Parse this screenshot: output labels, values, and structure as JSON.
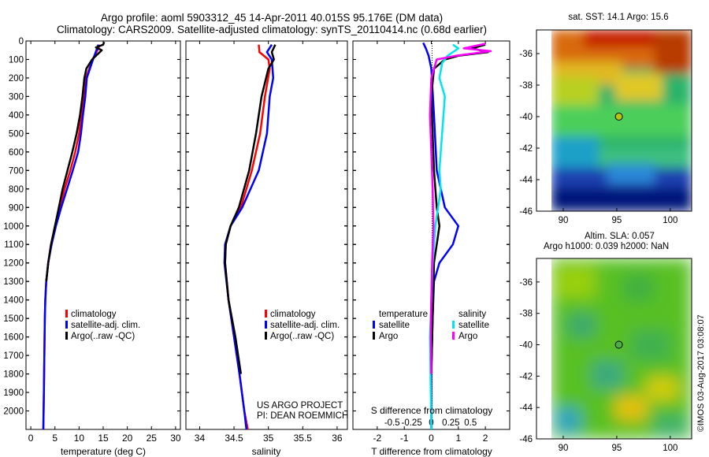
{
  "header": {
    "title_line1": "Argo profile: aoml 5903312_45 14-Apr-2011 40.015S 95.176E (DM data)",
    "title_line2": "Climatology: CARS2009. Satellite-adjusted climatology: synTS_20110414.nc (0.68d earlier)"
  },
  "colors": {
    "climatology": "#ff0000",
    "satellite": "#0000ff",
    "argo": "#000000",
    "satellite_s": "#00e5ee",
    "argo_s": "#ff00ff"
  },
  "credit": {
    "project": "US ARGO PROJECT",
    "pi": "PI: DEAN ROEMMICH",
    "footer": "©IMOS 03-Aug-2017 03:08:07"
  },
  "chart_data": [
    {
      "type": "line",
      "xlabel": "temperature (deg C)",
      "xlim": [
        -1,
        31
      ],
      "ylim": [
        2100,
        0
      ],
      "xticks": [
        "0",
        "5",
        "10",
        "15",
        "20",
        "25",
        "30"
      ],
      "yticks": [
        "0",
        "100",
        "200",
        "300",
        "400",
        "500",
        "600",
        "700",
        "800",
        "900",
        "1000",
        "1100",
        "1200",
        "1300",
        "1400",
        "1500",
        "1600",
        "1700",
        "1800",
        "1900",
        "2000"
      ],
      "legend": [
        "climatology",
        "satellite-adj. clim.",
        "Argo(..raw -QC)"
      ],
      "series": [
        {
          "name": "climatology",
          "color": "#ff0000",
          "points": [
            [
              14.3,
              20
            ],
            [
              13.8,
              50
            ],
            [
              12.8,
              100
            ],
            [
              11.4,
              200
            ],
            [
              11.0,
              300
            ],
            [
              10.5,
              400
            ],
            [
              10.0,
              500
            ],
            [
              9.2,
              600
            ],
            [
              8.2,
              700
            ],
            [
              7.0,
              800
            ],
            [
              6.0,
              900
            ],
            [
              5.0,
              1000
            ],
            [
              4.2,
              1100
            ],
            [
              3.6,
              1200
            ],
            [
              3.2,
              1300
            ],
            [
              3.0,
              1400
            ],
            [
              2.9,
              1500
            ],
            [
              2.8,
              1700
            ],
            [
              2.7,
              1900
            ],
            [
              2.6,
              2100
            ]
          ]
        },
        {
          "name": "satellite-adj. clim.",
          "color": "#0000ff",
          "points": [
            [
              14.0,
              20
            ],
            [
              13.6,
              50
            ],
            [
              12.9,
              100
            ],
            [
              11.6,
              200
            ],
            [
              11.3,
              300
            ],
            [
              10.8,
              400
            ],
            [
              10.4,
              500
            ],
            [
              9.8,
              600
            ],
            [
              8.7,
              700
            ],
            [
              7.5,
              800
            ],
            [
              6.3,
              900
            ],
            [
              5.2,
              1000
            ],
            [
              4.3,
              1100
            ],
            [
              3.6,
              1200
            ],
            [
              3.2,
              1300
            ],
            [
              3.0,
              1400
            ],
            [
              2.9,
              1500
            ],
            [
              2.8,
              1700
            ],
            [
              2.7,
              1900
            ],
            [
              2.6,
              2100
            ]
          ]
        },
        {
          "name": "Argo(..raw -QC)",
          "color": "#000000",
          "points": [
            [
              15.2,
              5
            ],
            [
              15.0,
              20
            ],
            [
              13.5,
              35
            ],
            [
              14.7,
              50
            ],
            [
              12.7,
              100
            ],
            [
              11.5,
              150
            ],
            [
              11.1,
              200
            ],
            [
              10.7,
              300
            ],
            [
              10.2,
              400
            ],
            [
              9.5,
              500
            ],
            [
              8.6,
              600
            ],
            [
              7.6,
              700
            ],
            [
              6.6,
              800
            ],
            [
              5.8,
              900
            ],
            [
              5.0,
              1000
            ],
            [
              4.2,
              1100
            ],
            [
              3.6,
              1200
            ],
            [
              3.2,
              1300
            ]
          ]
        }
      ]
    },
    {
      "type": "line",
      "xlabel": "salinity",
      "xlim": [
        33.8,
        36.15
      ],
      "ylim": [
        2100,
        0
      ],
      "xticks": [
        "34",
        "34.5",
        "35",
        "35.5",
        "36"
      ],
      "legend": [
        "climatology",
        "satellite-adj. clim.",
        "Argo(..raw -QC)"
      ],
      "series": [
        {
          "name": "climatology",
          "color": "#ff0000",
          "points": [
            [
              34.86,
              20
            ],
            [
              34.87,
              60
            ],
            [
              35.0,
              100
            ],
            [
              35.02,
              150
            ],
            [
              34.95,
              300
            ],
            [
              34.88,
              500
            ],
            [
              34.76,
              700
            ],
            [
              34.6,
              900
            ],
            [
              34.45,
              1000
            ],
            [
              34.38,
              1100
            ],
            [
              34.37,
              1200
            ],
            [
              34.42,
              1400
            ],
            [
              34.5,
              1600
            ],
            [
              34.58,
              1800
            ],
            [
              34.65,
              2000
            ],
            [
              34.7,
              2100
            ]
          ]
        },
        {
          "name": "satellite-adj. clim.",
          "color": "#0000ff",
          "points": [
            [
              35.05,
              20
            ],
            [
              34.98,
              60
            ],
            [
              35.05,
              100
            ],
            [
              35.07,
              200
            ],
            [
              35.02,
              300
            ],
            [
              34.98,
              500
            ],
            [
              34.86,
              700
            ],
            [
              34.62,
              900
            ],
            [
              34.45,
              1000
            ],
            [
              34.37,
              1100
            ],
            [
              34.36,
              1200
            ],
            [
              34.42,
              1400
            ],
            [
              34.5,
              1600
            ],
            [
              34.58,
              1800
            ],
            [
              34.65,
              2000
            ],
            [
              34.68,
              2100
            ]
          ]
        },
        {
          "name": "Argo(..raw -QC)",
          "color": "#000000",
          "points": [
            [
              35.1,
              20
            ],
            [
              35.05,
              60
            ],
            [
              35.08,
              100
            ],
            [
              35.0,
              150
            ],
            [
              34.9,
              300
            ],
            [
              34.82,
              500
            ],
            [
              34.72,
              700
            ],
            [
              34.57,
              900
            ],
            [
              34.45,
              1000
            ],
            [
              34.38,
              1100
            ],
            [
              34.37,
              1200
            ],
            [
              34.42,
              1400
            ],
            [
              34.52,
              1600
            ],
            [
              34.6,
              1800
            ]
          ]
        }
      ]
    },
    {
      "type": "line",
      "xlabel": "T difference from climatology",
      "xlabel_top": "S difference from climatology",
      "xlim": [
        -2.9,
        2.9
      ],
      "ylim": [
        2100,
        0
      ],
      "xticks": [
        "-2",
        "-1",
        "0",
        "1",
        "2"
      ],
      "xticks_top": [
        "-0.5",
        "-0.25",
        "0",
        "0.25",
        "0.5"
      ],
      "legend_temperature_title": "temperature",
      "legend_salinity_title": "salinity",
      "legend": [
        "satellite",
        "Argo",
        "satellite",
        "Argo"
      ],
      "series": [
        {
          "name": "satellite",
          "color": "#0000ff",
          "points": [
            [
              -0.3,
              10
            ],
            [
              -0.2,
              40
            ],
            [
              -0.1,
              80
            ],
            [
              0,
              150
            ],
            [
              0.1,
              400
            ],
            [
              0.2,
              700
            ],
            [
              0.5,
              900
            ],
            [
              1.0,
              1000
            ],
            [
              0.8,
              1100
            ],
            [
              0.3,
              1200
            ],
            [
              0.1,
              1300
            ],
            [
              0.05,
              1500
            ],
            [
              0,
              1800
            ],
            [
              0,
              2100
            ]
          ]
        },
        {
          "name": "Argo",
          "color": "#000000",
          "points": [
            [
              2.0,
              20
            ],
            [
              1.5,
              40
            ],
            [
              2.1,
              60
            ],
            [
              1.0,
              80
            ],
            [
              0.5,
              100
            ],
            [
              0.1,
              150
            ],
            [
              0,
              300
            ],
            [
              0.05,
              500
            ],
            [
              0.1,
              700
            ],
            [
              0.2,
              900
            ],
            [
              0.3,
              1000
            ],
            [
              0.2,
              1100
            ],
            [
              0.1,
              1200
            ],
            [
              0.05,
              1500
            ],
            [
              0,
              1800
            ]
          ]
        },
        {
          "name": "satellite",
          "color": "#00e5ee",
          "points": [
            [
              0.8,
              20
            ],
            [
              1.0,
              40
            ],
            [
              0.8,
              60
            ],
            [
              0.6,
              80
            ],
            [
              0.4,
              120
            ],
            [
              0.3,
              200
            ],
            [
              0.5,
              300
            ],
            [
              0.4,
              500
            ],
            [
              0.3,
              700
            ],
            [
              0.35,
              800
            ],
            [
              0.15,
              1000
            ],
            [
              0.05,
              1200
            ],
            [
              0,
              1400
            ],
            [
              -0.05,
              1600
            ],
            [
              0,
              2100
            ]
          ]
        },
        {
          "name": "Argo",
          "color": "#ff00ff",
          "points": [
            [
              2.0,
              15
            ],
            [
              1.2,
              40
            ],
            [
              2.2,
              55
            ],
            [
              0.9,
              80
            ],
            [
              0.2,
              100
            ],
            [
              0.1,
              150
            ],
            [
              0,
              200
            ],
            [
              -0.05,
              400
            ],
            [
              0,
              600
            ],
            [
              0.05,
              800
            ],
            [
              0.08,
              1000
            ],
            [
              0.03,
              1200
            ],
            [
              0,
              1400
            ],
            [
              -0.02,
              1600
            ],
            [
              0,
              1800
            ]
          ]
        }
      ]
    },
    {
      "type": "heatmap",
      "title": "sat. SST: 14.1  Argo: 15.6",
      "xlim": [
        87.5,
        102
      ],
      "ylim": [
        -46,
        -34.5
      ],
      "xticks": [
        "90",
        "95",
        "100"
      ],
      "yticks": [
        "-36",
        "-38",
        "-40",
        "-42",
        "-44",
        "-46"
      ],
      "marker": {
        "lon": 95.2,
        "lat": -40.0
      }
    },
    {
      "type": "heatmap",
      "title_line1": "Altim. SLA: 0.057",
      "title_line2": "Argo h1000: 0.039 h2000: NaN",
      "xlim": [
        87.5,
        102
      ],
      "ylim": [
        -46,
        -34.5
      ],
      "xticks": [
        "90",
        "95",
        "100"
      ],
      "yticks": [
        "-36",
        "-38",
        "-40",
        "-42",
        "-44",
        "-46"
      ],
      "marker": {
        "lon": 95.2,
        "lat": -40.0
      }
    }
  ]
}
